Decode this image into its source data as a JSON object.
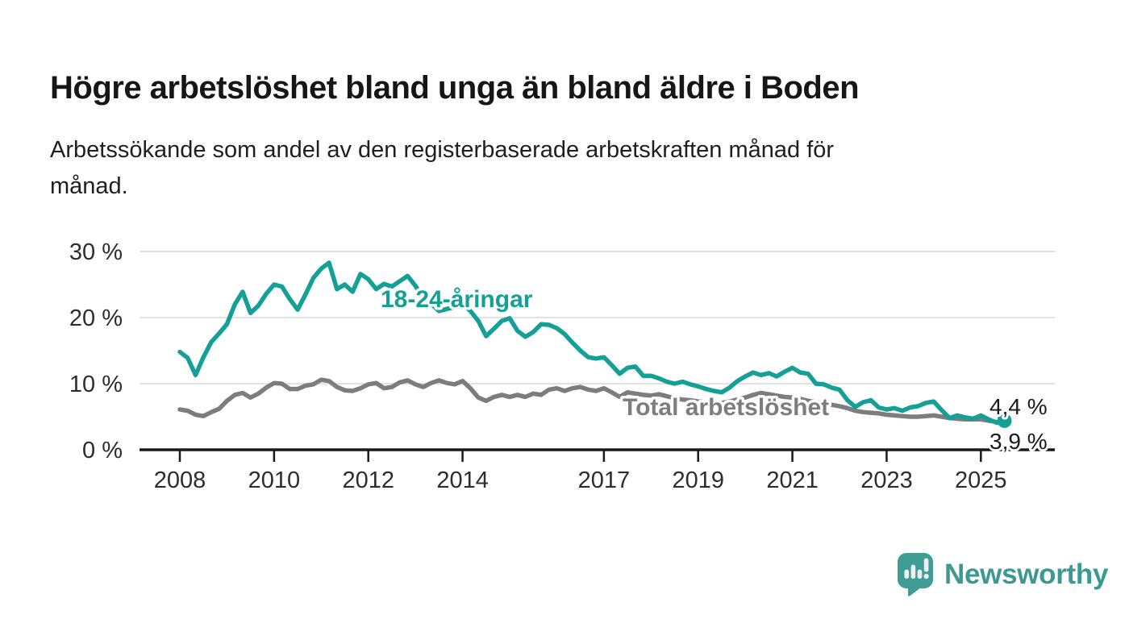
{
  "chart_data": {
    "type": "line",
    "title": "Högre arbetslöshet bland unga än bland äldre i Boden",
    "subtitle": "Arbetssökande som andel av den registerbaserade arbetskraften månad för månad.",
    "subtitle_lines": [
      "Arbetssökande som andel av den registerbaserade arbetskraften månad för",
      "månad."
    ],
    "grid": true,
    "legend_position": "inline-labels",
    "x_axis": {
      "unit": "year",
      "start_year": 2008,
      "step_months": 2,
      "tick_years": [
        2008,
        2010,
        2012,
        2014,
        2017,
        2019,
        2021,
        2023,
        2025
      ],
      "tick_labels": [
        "2008",
        "2010",
        "2012",
        "2014",
        "2017",
        "2019",
        "2021",
        "2023",
        "2025"
      ]
    },
    "y_axis": {
      "unit": "%",
      "range": [
        0,
        32
      ],
      "ticks": [
        {
          "value": 0,
          "label": "0 %"
        },
        {
          "value": 10,
          "label": "10 %"
        },
        {
          "value": 20,
          "label": "20 %"
        },
        {
          "value": 30,
          "label": "30 %"
        }
      ]
    },
    "series": [
      {
        "name": "18-24-åringar",
        "color": "#14a096",
        "end_value": 4.4,
        "end_label": "4,4 %",
        "end_dot": true,
        "values": [
          14.8,
          13.9,
          11.3,
          14.0,
          16.3,
          17.6,
          19.0,
          22.0,
          23.9,
          20.7,
          21.8,
          23.6,
          25.0,
          24.7,
          22.8,
          21.2,
          23.5,
          26.0,
          27.4,
          28.3,
          24.3,
          25.0,
          23.9,
          26.6,
          25.8,
          24.3,
          25.1,
          24.7,
          25.5,
          26.3,
          24.8,
          23.0,
          22.1,
          21.0,
          21.3,
          21.6,
          22.0,
          21.0,
          19.5,
          17.2,
          18.3,
          19.5,
          19.9,
          18.0,
          17.1,
          17.8,
          19.0,
          18.9,
          18.4,
          17.5,
          16.2,
          15.0,
          14.0,
          13.8,
          14.0,
          12.8,
          11.5,
          12.4,
          12.6,
          11.2,
          11.2,
          10.8,
          10.3,
          10.0,
          10.3,
          9.9,
          9.6,
          9.2,
          8.9,
          8.7,
          9.4,
          10.4,
          11.1,
          11.7,
          11.3,
          11.6,
          11.1,
          11.8,
          12.4,
          11.7,
          11.5,
          10.0,
          9.9,
          9.4,
          9.1,
          7.5,
          6.5,
          7.2,
          7.5,
          6.4,
          6.1,
          6.3,
          5.9,
          6.4,
          6.6,
          7.1,
          7.3,
          6.0,
          4.8,
          5.2,
          4.9,
          4.7,
          5.2,
          4.6,
          4.1,
          4.4
        ]
      },
      {
        "name": "Total arbetslöshet",
        "color": "#7d7d7d",
        "end_value": 3.9,
        "end_label": "3,9 %",
        "end_dot": false,
        "values": [
          6.1,
          5.9,
          5.3,
          5.1,
          5.7,
          6.2,
          7.4,
          8.3,
          8.6,
          7.9,
          8.5,
          9.4,
          10.1,
          10.0,
          9.2,
          9.2,
          9.7,
          9.9,
          10.6,
          10.4,
          9.5,
          9.0,
          8.9,
          9.3,
          9.9,
          10.1,
          9.3,
          9.5,
          10.2,
          10.5,
          9.9,
          9.5,
          10.1,
          10.5,
          10.1,
          9.9,
          10.4,
          9.3,
          7.9,
          7.4,
          8.0,
          8.3,
          8.0,
          8.3,
          8.0,
          8.5,
          8.3,
          9.1,
          9.3,
          8.9,
          9.3,
          9.5,
          9.1,
          8.9,
          9.3,
          8.7,
          8.0,
          8.7,
          8.5,
          8.3,
          8.2,
          8.4,
          8.1,
          7.8,
          7.6,
          7.5,
          7.3,
          7.2,
          7.0,
          7.1,
          7.3,
          7.6,
          7.9,
          8.3,
          8.6,
          8.4,
          8.2,
          8.0,
          7.9,
          7.7,
          7.4,
          7.2,
          7.0,
          6.8,
          6.6,
          6.3,
          5.9,
          5.7,
          5.6,
          5.5,
          5.3,
          5.2,
          5.1,
          5.0,
          5.0,
          5.1,
          5.2,
          5.0,
          4.8,
          4.7,
          4.6,
          4.6,
          4.6,
          4.4,
          4.2,
          3.9
        ]
      }
    ],
    "colors": {
      "grid": "#d9d9d9",
      "axis": "#1a1a1a",
      "tick_text": "#2d2d2d",
      "end_label_text": "#1a1a1a"
    }
  },
  "logo": {
    "text": "Newsworthy",
    "icon": "newsworthy-speech-bubble-chart-icon",
    "bubble_color": "#3f9d95",
    "bars_color": "#eaf3f2",
    "text_color": "#3a9a93"
  }
}
